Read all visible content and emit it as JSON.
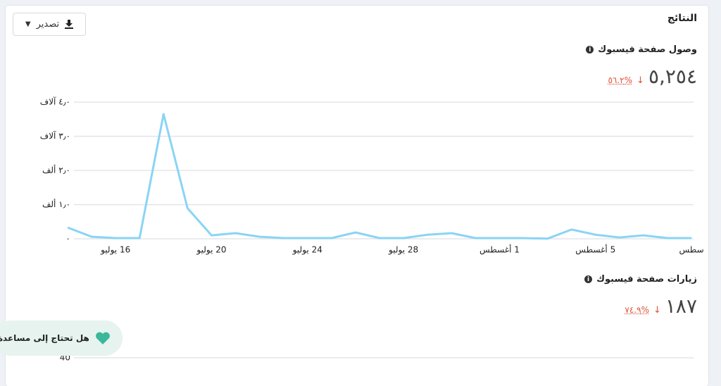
{
  "header": {
    "title": "النتائج",
    "export_button": "تصدير"
  },
  "chart_data": [
    {
      "type": "line",
      "title": "وصول صفحة فيسبوك",
      "total": "٥,٢٥٤",
      "change": "%٥٦.٢",
      "categories": [
        null,
        null,
        "16 يوليو",
        null,
        null,
        null,
        "20 يوليو",
        null,
        null,
        null,
        "24 يوليو",
        null,
        null,
        null,
        "28 يوليو",
        null,
        null,
        null,
        "1 أغسطس",
        null,
        null,
        null,
        "5 أغسطس",
        null,
        null,
        null,
        "سطس"
      ],
      "series": [
        {
          "color": "#8ad4f5",
          "values": [
            330,
            60,
            20,
            20,
            3650,
            890,
            100,
            165,
            60,
            20,
            20,
            20,
            185,
            20,
            20,
            120,
            165,
            20,
            20,
            20,
            5,
            270,
            120,
            40,
            100,
            20,
            20
          ]
        }
      ],
      "ylim": [
        0,
        4000
      ],
      "yticks": [
        {
          "value": 0,
          "label": "٠"
        },
        {
          "value": 1000,
          "label": "١٫٠ ألف"
        },
        {
          "value": 2000,
          "label": "٢٫٠ ألف"
        },
        {
          "value": 3000,
          "label": "٣٫٠ آلاف"
        },
        {
          "value": 4000,
          "label": "٤٫٠ آلاف"
        }
      ],
      "grid": true
    },
    {
      "type": "line",
      "title": "زيارات صفحة فيسبوك",
      "total": "١٨٧",
      "change": "%٧٤.٩",
      "ylim": [
        0,
        40
      ],
      "yticks": [
        40
      ],
      "grid": true
    }
  ],
  "help": {
    "text": "هل تحتاج إلى مساعدة؟"
  }
}
